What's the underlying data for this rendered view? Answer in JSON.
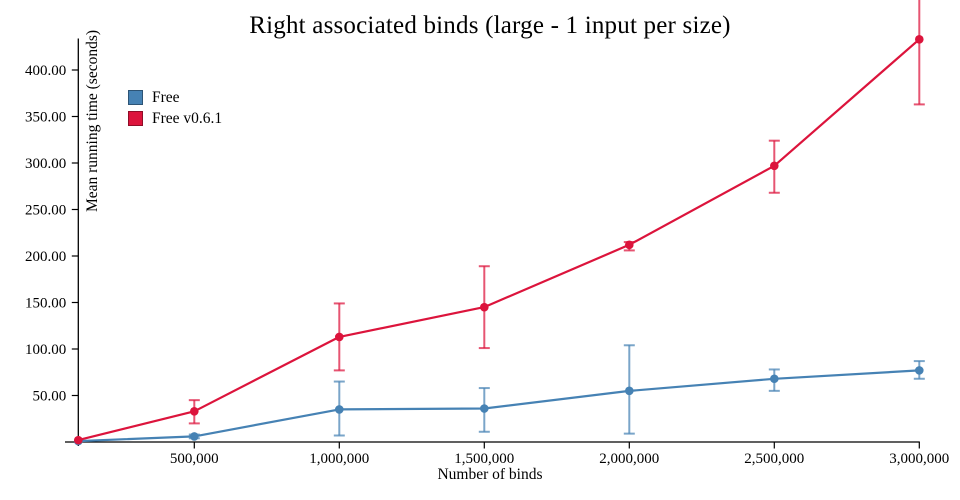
{
  "chart_data": {
    "type": "line",
    "title": "Right associated binds (large - 1 input per size)",
    "xlabel": "Number of binds",
    "ylabel": "Mean running time (seconds)",
    "grid": false,
    "legend_position": "top-left-inside",
    "x_domain": [
      100000,
      3000000
    ],
    "y_domain": [
      0,
      433
    ],
    "x_ticks": [
      {
        "value": 500000,
        "label": "500,000"
      },
      {
        "value": 1000000,
        "label": "1,000,000"
      },
      {
        "value": 1500000,
        "label": "1,500,000"
      },
      {
        "value": 2000000,
        "label": "2,000,000"
      },
      {
        "value": 2500000,
        "label": "2,500,000"
      },
      {
        "value": 3000000,
        "label": "3,000,000"
      }
    ],
    "y_ticks": [
      {
        "value": 50,
        "label": "50.00"
      },
      {
        "value": 100,
        "label": "100.00"
      },
      {
        "value": 150,
        "label": "150.00"
      },
      {
        "value": 200,
        "label": "200.00"
      },
      {
        "value": 250,
        "label": "250.00"
      },
      {
        "value": 300,
        "label": "300.00"
      },
      {
        "value": 350,
        "label": "350.00"
      },
      {
        "value": 400,
        "label": "400.00"
      }
    ],
    "x": [
      100000,
      500000,
      1000000,
      1500000,
      2000000,
      2500000,
      3000000
    ],
    "series": [
      {
        "name": "Free",
        "color": "#4682b4",
        "values": [
          1,
          6,
          35,
          36,
          55,
          68,
          77
        ],
        "err_lo": [
          1,
          4,
          7,
          11,
          9,
          55,
          68
        ],
        "err_hi": [
          1,
          8,
          65,
          58,
          104,
          78,
          87
        ]
      },
      {
        "name": "Free v0.6.1",
        "color": "#dc143c",
        "values": [
          2,
          33,
          113,
          145,
          212,
          297,
          433
        ],
        "err_lo": [
          2,
          20,
          77,
          101,
          206,
          268,
          363
        ],
        "err_hi": [
          2,
          45,
          149,
          189,
          215,
          324,
          490
        ],
        "note": "top error bar at x=3,000,000 is clipped by the top edge of the chart"
      }
    ]
  }
}
